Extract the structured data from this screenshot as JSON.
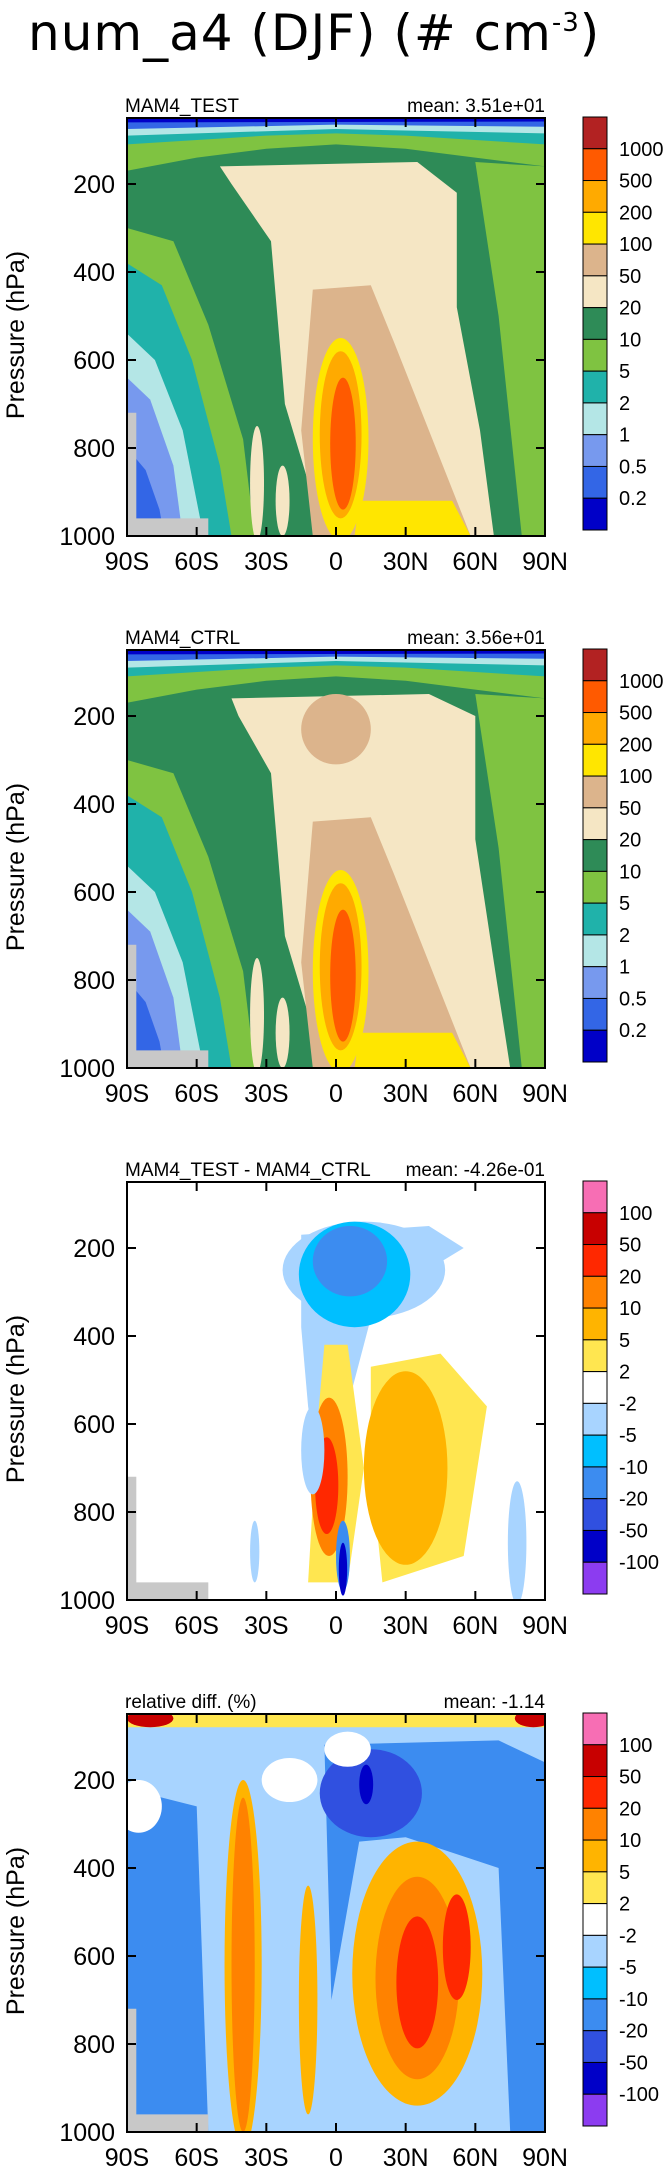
{
  "title": {
    "main": "num_a4 (DJF) (# cm",
    "exponent": "-3",
    "close": ")"
  },
  "colors": {
    "abs": [
      "#0000c8",
      "#3366e6",
      "#7799ee",
      "#b4e6e6",
      "#20b2aa",
      "#7fc341",
      "#2e8b57",
      "#f5e6c4",
      "#dcb48c",
      "#ffe600",
      "#ffaa00",
      "#ff5a00",
      "#b22222"
    ],
    "diff": [
      "#8c3cf0",
      "#0000c8",
      "#3050e0",
      "#3c8cf0",
      "#00bfff",
      "#a8d4ff",
      "#ffffff",
      "#ffe650",
      "#ffb400",
      "#ff8200",
      "#ff2800",
      "#c80000",
      "#f76eb4"
    ]
  },
  "chart_data": [
    {
      "type": "heatmap",
      "panel_label": "MAM4_TEST",
      "mean_label": "mean:",
      "mean_value": "3.51e+01",
      "ylabel": "Pressure (hPa)",
      "xticks": [
        "90S",
        "60S",
        "30S",
        "0",
        "30N",
        "60N",
        "90N"
      ],
      "x_values": [
        -90,
        -60,
        -30,
        0,
        30,
        60,
        90
      ],
      "yticks": [
        "200",
        "400",
        "600",
        "800",
        "1000"
      ],
      "y_values": [
        200,
        400,
        600,
        800,
        1000
      ],
      "xlim": [
        -90,
        90
      ],
      "ylim": [
        50,
        1000
      ],
      "colorbar_levels": [
        "1000",
        "500",
        "200",
        "100",
        "50",
        "20",
        "10",
        "5",
        "2",
        "1",
        "0.5",
        "0.2"
      ],
      "palette": "abs"
    },
    {
      "type": "heatmap",
      "panel_label": "MAM4_CTRL",
      "mean_label": "mean:",
      "mean_value": "3.56e+01",
      "ylabel": "Pressure (hPa)",
      "xticks": [
        "90S",
        "60S",
        "30S",
        "0",
        "30N",
        "60N",
        "90N"
      ],
      "x_values": [
        -90,
        -60,
        -30,
        0,
        30,
        60,
        90
      ],
      "yticks": [
        "200",
        "400",
        "600",
        "800",
        "1000"
      ],
      "y_values": [
        200,
        400,
        600,
        800,
        1000
      ],
      "xlim": [
        -90,
        90
      ],
      "ylim": [
        50,
        1000
      ],
      "colorbar_levels": [
        "1000",
        "500",
        "200",
        "100",
        "50",
        "20",
        "10",
        "5",
        "2",
        "1",
        "0.5",
        "0.2"
      ],
      "palette": "abs"
    },
    {
      "type": "heatmap",
      "panel_label": "MAM4_TEST - MAM4_CTRL",
      "mean_label": "mean:",
      "mean_value": "-4.26e-01",
      "ylabel": "Pressure (hPa)",
      "xticks": [
        "90S",
        "60S",
        "30S",
        "0",
        "30N",
        "60N",
        "90N"
      ],
      "x_values": [
        -90,
        -60,
        -30,
        0,
        30,
        60,
        90
      ],
      "yticks": [
        "200",
        "400",
        "600",
        "800",
        "1000"
      ],
      "y_values": [
        200,
        400,
        600,
        800,
        1000
      ],
      "xlim": [
        -90,
        90
      ],
      "ylim": [
        50,
        1000
      ],
      "colorbar_levels": [
        "100",
        "50",
        "20",
        "10",
        "5",
        "2",
        "-2",
        "-5",
        "-10",
        "-20",
        "-50",
        "-100"
      ],
      "palette": "diff"
    },
    {
      "type": "heatmap",
      "panel_label": "relative diff. (%)",
      "mean_label": "mean:",
      "mean_value": "-1.14",
      "ylabel": "Pressure (hPa)",
      "xticks": [
        "90S",
        "60S",
        "30S",
        "0",
        "30N",
        "60N",
        "90N"
      ],
      "x_values": [
        -90,
        -60,
        -30,
        0,
        30,
        60,
        90
      ],
      "yticks": [
        "200",
        "400",
        "600",
        "800",
        "1000"
      ],
      "y_values": [
        200,
        400,
        600,
        800,
        1000
      ],
      "xlim": [
        -90,
        90
      ],
      "ylim": [
        50,
        1000
      ],
      "colorbar_levels": [
        "100",
        "50",
        "20",
        "10",
        "5",
        "2",
        "-2",
        "-5",
        "-10",
        "-20",
        "-50",
        "-100"
      ],
      "palette": "diff"
    }
  ]
}
